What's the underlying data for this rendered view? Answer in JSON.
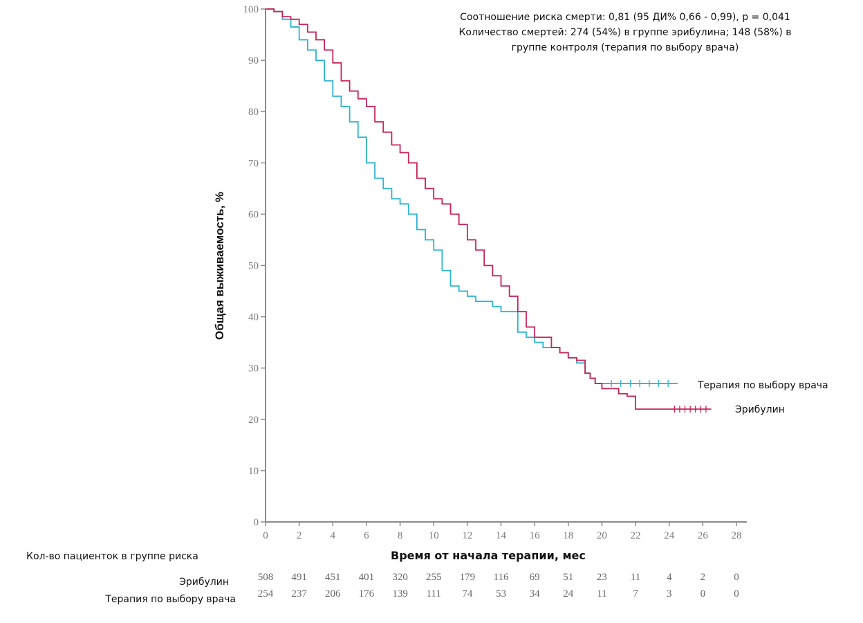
{
  "chart_data": {
    "type": "line",
    "subtype": "kaplan-meier",
    "title": "",
    "annotation": [
      "Соотношение риска смерти: 0,81 (95 ДИ% 0,66 - 0,99), p = 0,041",
      "Количество смертей: 274 (54%) в группе эрибулина; 148 (58%) в",
      "группе контроля (терапия по выбору врача)"
    ],
    "xlabel": "Время от начала терапии, мес",
    "ylabel": "Общая выживаемость, %",
    "xlim": [
      0,
      28
    ],
    "ylim": [
      0,
      100
    ],
    "xticks": [
      0,
      2,
      4,
      6,
      8,
      10,
      12,
      14,
      16,
      18,
      20,
      22,
      24,
      26,
      28
    ],
    "yticks": [
      0,
      10,
      20,
      30,
      40,
      50,
      60,
      70,
      80,
      90,
      100
    ],
    "grid": false,
    "series": [
      {
        "name": "Эрибулин",
        "color": "#c8235a",
        "x": [
          0,
          0.5,
          1,
          1.5,
          2,
          2.5,
          3,
          3.5,
          4,
          4.5,
          5,
          5.5,
          6,
          6.5,
          7,
          7.5,
          8,
          8.5,
          9,
          9.5,
          10,
          10.5,
          11,
          11.5,
          12,
          12.5,
          13,
          13.5,
          14,
          14.5,
          15,
          15.5,
          16,
          16.5,
          17,
          17.5,
          18,
          18.5,
          19,
          19.3,
          19.6,
          20,
          20.5,
          21,
          21.5,
          22,
          23,
          24,
          25,
          26.5
        ],
        "y": [
          100,
          99.5,
          98.5,
          98,
          97,
          95.5,
          94,
          92,
          89.5,
          86,
          84,
          82.5,
          81,
          78,
          76,
          73.5,
          72,
          70,
          67,
          65,
          63,
          62,
          60,
          58,
          55,
          53,
          50,
          48,
          46,
          44,
          41,
          38,
          36,
          36,
          34,
          33,
          32,
          31.5,
          29,
          28,
          27,
          26,
          26,
          25,
          24.5,
          22,
          22,
          22,
          22,
          22
        ]
      },
      {
        "name": "Терапия по выбору врача",
        "color": "#2bb3d0",
        "x": [
          0,
          0.5,
          1,
          1.5,
          2,
          2.5,
          3,
          3.5,
          4,
          4.5,
          5,
          5.5,
          6,
          6.5,
          7,
          7.5,
          8,
          8.5,
          9,
          9.5,
          10,
          10.5,
          11,
          11.5,
          12,
          12.5,
          13,
          13.5,
          14,
          14.5,
          15,
          15.5,
          16,
          16.5,
          17,
          17.5,
          18,
          18.5,
          19,
          19.3,
          19.6,
          20,
          22,
          24.5
        ],
        "y": [
          100,
          99.5,
          98,
          96.5,
          94,
          92,
          90,
          86,
          83,
          81,
          78,
          75,
          70,
          67,
          65,
          63,
          62,
          60,
          57,
          55,
          53,
          49,
          46,
          45,
          44,
          43,
          43,
          42,
          41,
          41,
          37,
          36,
          35,
          34,
          34,
          33,
          32,
          31,
          29,
          28,
          27,
          27,
          27,
          27
        ]
      }
    ],
    "legend": [
      {
        "label": "Терапия по выбору врача",
        "color": "#2bb3d0",
        "placement": "right-of-curve-end"
      },
      {
        "label": "Эрибулин",
        "color": "#c8235a",
        "placement": "right-of-curve-end"
      }
    ],
    "risk_table": {
      "title": "Кол-во пациенток в группе риска",
      "times": [
        0,
        2,
        4,
        6,
        8,
        10,
        12,
        14,
        16,
        18,
        20,
        22,
        24,
        26,
        28
      ],
      "rows": [
        {
          "label": "Эрибулин",
          "values": [
            508,
            491,
            451,
            401,
            320,
            255,
            179,
            116,
            69,
            51,
            23,
            11,
            4,
            2,
            0
          ]
        },
        {
          "label": "Терапия по выбору врача",
          "values": [
            254,
            237,
            206,
            176,
            139,
            111,
            74,
            53,
            34,
            24,
            11,
            7,
            3,
            0,
            0
          ]
        }
      ]
    }
  }
}
